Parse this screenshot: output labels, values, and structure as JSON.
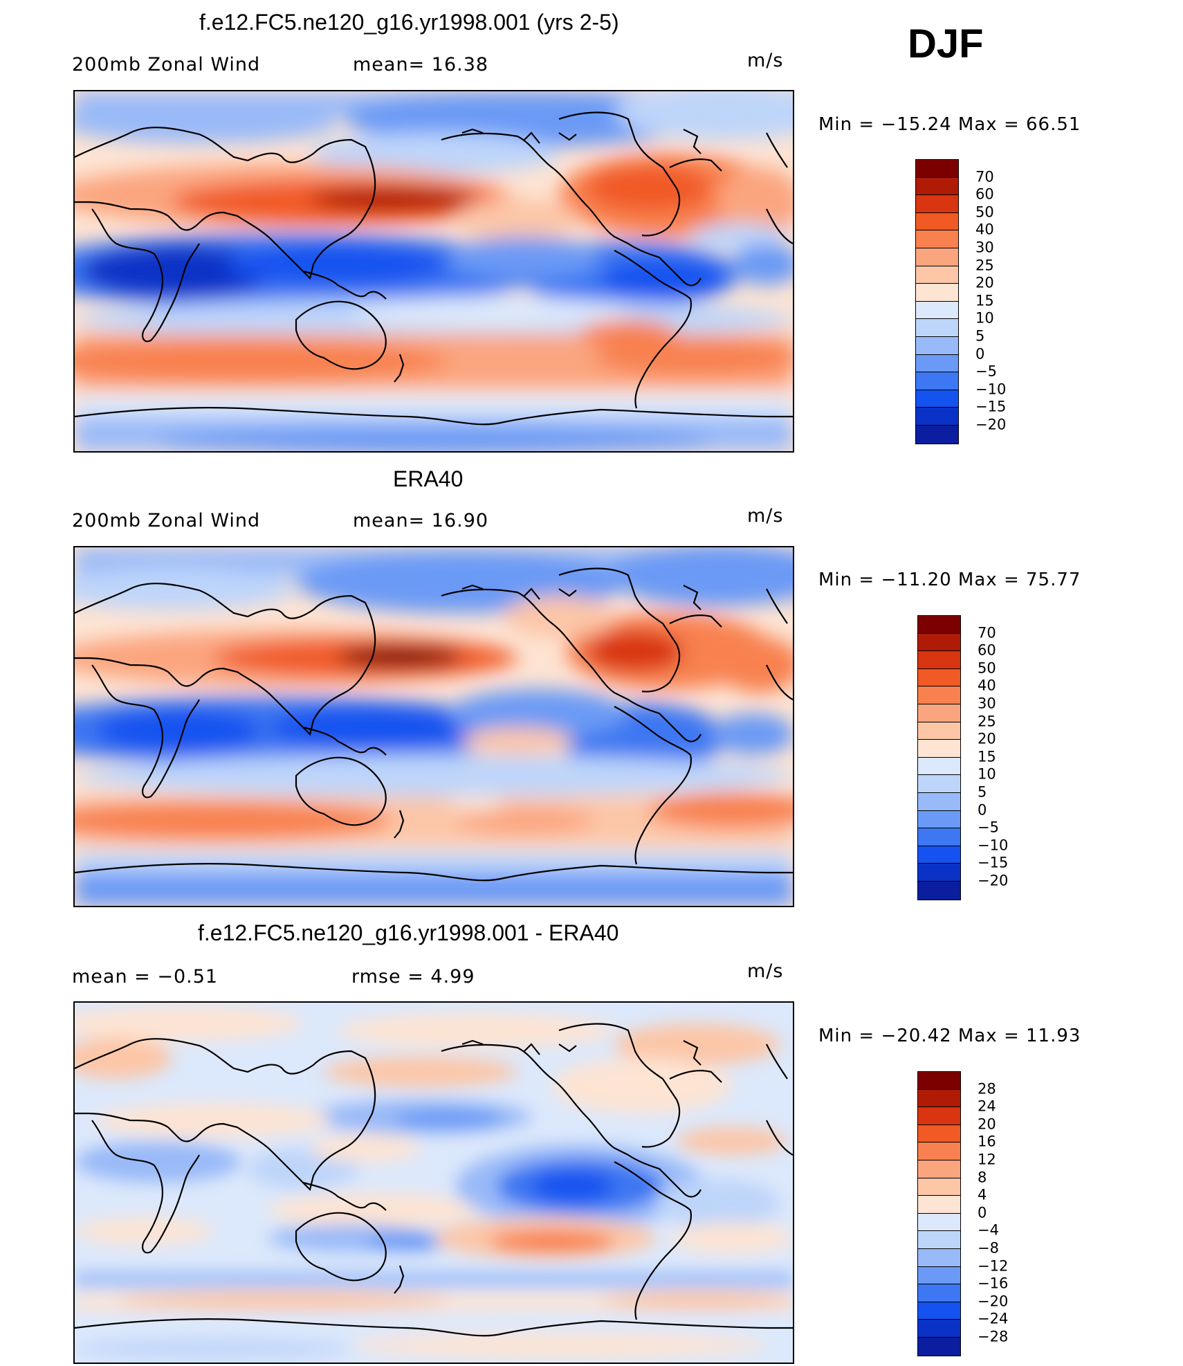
{
  "season": "DJF",
  "colors": {
    "abs_scale": [
      "#00007f",
      "#0a1e9f",
      "#0b32c6",
      "#1553f0",
      "#3d77f2",
      "#6a9af5",
      "#99baf8",
      "#bed5fa",
      "#dce8fb",
      "#fde4d3",
      "#fcc6a7",
      "#fba57f",
      "#f8814f",
      "#f15a25",
      "#d93510",
      "#b01b05",
      "#7d0000"
    ],
    "diff_scale": [
      "#00007f",
      "#0a1e9f",
      "#0b32c6",
      "#1553f0",
      "#3d77f2",
      "#6a9af5",
      "#99baf8",
      "#bed5fa",
      "#dce8fb",
      "#fde4d3",
      "#fcc6a7",
      "#fba57f",
      "#f8814f",
      "#f15a25",
      "#d93510",
      "#b01b05",
      "#7d0000"
    ]
  },
  "panels": [
    {
      "title": "f.e12.FC5.ne120_g16.yr1998.001 (yrs 2-5)",
      "left_label": "200mb  Zonal  Wind",
      "mid_label": "mean=   16.38",
      "units": "m/s",
      "min_max": "Min  =  −15.24  Max  =    66.51",
      "levels": [
        "70",
        "60",
        "50",
        "40",
        "30",
        "25",
        "20",
        "15",
        "10",
        "5",
        "0",
        "−5",
        "−10",
        "−15",
        "−20"
      ]
    },
    {
      "title": "ERA40",
      "left_label": "200mb  Zonal  Wind",
      "mid_label": "mean=   16.90",
      "units": "m/s",
      "min_max": "Min  =  −11.20  Max  =    75.77",
      "levels": [
        "70",
        "60",
        "50",
        "40",
        "30",
        "25",
        "20",
        "15",
        "10",
        "5",
        "0",
        "−5",
        "−10",
        "−15",
        "−20"
      ]
    },
    {
      "title": "f.e12.FC5.ne120_g16.yr1998.001 - ERA40",
      "left_label": "mean  =    −0.51",
      "mid_label": "rmse  =     4.99",
      "units": "m/s",
      "min_max": "Min  =  −20.42  Max  =    11.93",
      "levels": [
        "28",
        "24",
        "20",
        "16",
        "12",
        "8",
        "4",
        "0",
        "−4",
        "−8",
        "−12",
        "−16",
        "−20",
        "−24",
        "−28"
      ]
    }
  ]
}
